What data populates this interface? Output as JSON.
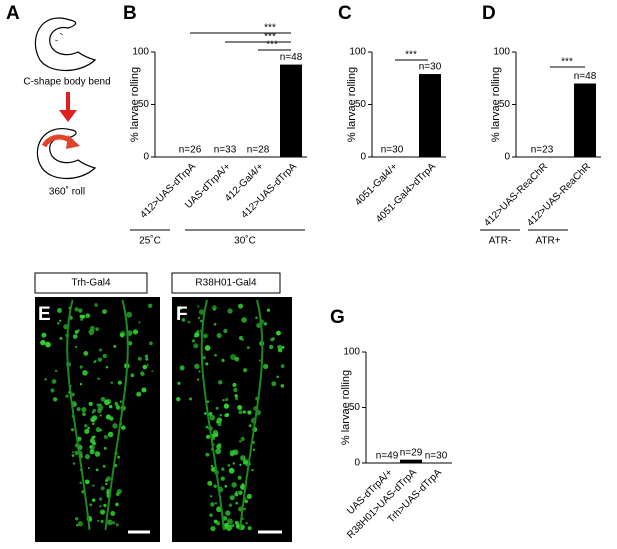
{
  "panels": {
    "A": "A",
    "E": "E",
    "F": "F"
  },
  "schematic": {
    "top_caption": "C-shape body bend",
    "bottom_caption": "360˚ roll"
  },
  "images": [
    {
      "title": "Trh-Gal4"
    },
    {
      "title": "R38H01-Gal4"
    }
  ],
  "chart_data": [
    {
      "type": "bar",
      "panel": "B",
      "ylabel": "% larvae rolling",
      "categories": [
        "412>UAS-dTrpA",
        "UAS-dTrpA/+",
        "412-Gal4/+",
        "412>UAS-dTrpA"
      ],
      "values": [
        0,
        0,
        0,
        88
      ],
      "sample_sizes": [
        "n=26",
        "n=33",
        "n=28",
        "n=48"
      ],
      "significance_labels": [
        "***",
        "***",
        "***"
      ],
      "groups": [
        "25˚C",
        "30˚C"
      ],
      "color": "#000000",
      "ylim": [
        0,
        100
      ],
      "yticks": [
        0,
        50,
        100
      ]
    },
    {
      "type": "bar",
      "panel": "C",
      "ylabel": "% larvae rolling",
      "categories": [
        "4051-Gal4/+",
        "4051-Gal4>dTrpA"
      ],
      "values": [
        0,
        79
      ],
      "sample_sizes": [
        "n=30",
        "n=30"
      ],
      "significance_labels": [
        "***"
      ],
      "color": "#000000",
      "ylim": [
        0,
        100
      ],
      "yticks": [
        0,
        50,
        100
      ]
    },
    {
      "type": "bar",
      "panel": "D",
      "ylabel": "% larvae rolling",
      "categories": [
        "412>UAS-ReaChR",
        "412>UAS-ReaChR"
      ],
      "values": [
        0,
        70
      ],
      "sample_sizes": [
        "n=23",
        "n=48"
      ],
      "significance_labels": [
        "***"
      ],
      "groups": [
        "ATR-",
        "ATR+"
      ],
      "color": "#000000",
      "ylim": [
        0,
        100
      ],
      "yticks": [
        0,
        50,
        100
      ]
    },
    {
      "type": "bar",
      "panel": "G",
      "ylabel": "% larvae rolling",
      "categories": [
        "UAS-dTrpA/+",
        "R38H01>UAS-dTrpA",
        "Trh>UAS-dTrpA"
      ],
      "values": [
        0,
        3,
        0
      ],
      "sample_sizes": [
        "n=49",
        "n=29",
        "n=30"
      ],
      "color": "#000000",
      "ylim": [
        0,
        100
      ],
      "yticks": [
        0,
        50,
        100
      ]
    }
  ]
}
